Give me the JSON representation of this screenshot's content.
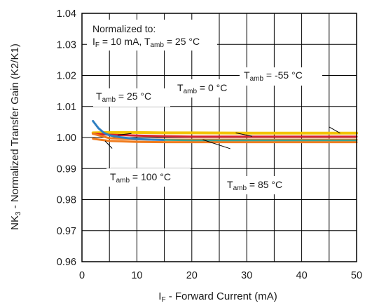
{
  "chart_data": {
    "type": "line",
    "title": "",
    "xlabel": {
      "prefix": "I",
      "sub": "F",
      "suffix": " - Forward Current (mA)"
    },
    "ylabel": {
      "prefix": "NK",
      "sub": "3",
      "suffix": " - Normalized Transfer Gain (K2/K1)"
    },
    "xlim": [
      0,
      50
    ],
    "ylim": [
      0.96,
      1.04
    ],
    "xticks": [
      0,
      10,
      20,
      30,
      40,
      50
    ],
    "yticks": [
      0.96,
      0.97,
      0.98,
      0.99,
      1.0,
      1.01,
      1.02,
      1.03,
      1.04
    ],
    "xtick_labels": [
      "0",
      "10",
      "20",
      "30",
      "40",
      "50"
    ],
    "ytick_labels": [
      "0.96",
      "0.97",
      "0.98",
      "0.99",
      "1.00",
      "1.01",
      "1.02",
      "1.03",
      "1.04"
    ],
    "grid": true,
    "colors": {
      "grid": "#000000",
      "yellow": "#f2c300",
      "red": "#d8232a",
      "orange": "#f07c1e",
      "blue": "#2f7fc1",
      "teal": "#3aa38f"
    },
    "series": [
      {
        "name": "Tamb = -55 °C",
        "color": "#f2c300",
        "width": 4,
        "x": [
          2,
          5,
          10,
          15,
          20,
          30,
          40,
          50
        ],
        "y": [
          1.0015,
          1.0016,
          1.0016,
          1.0015,
          1.0015,
          1.0014,
          1.0014,
          1.0014
        ]
      },
      {
        "name": "Tamb = 0 °C",
        "color": "#d8232a",
        "width": 3,
        "x": [
          2,
          5,
          10,
          15,
          20,
          30,
          40,
          50
        ],
        "y": [
          1.0012,
          1.0009,
          1.0006,
          1.0004,
          1.0003,
          1.0003,
          1.0003,
          1.0003
        ]
      },
      {
        "name": "Tamb = 85 °C",
        "color": "#f07c1e",
        "width": 3,
        "x": [
          2,
          5,
          10,
          15,
          20,
          30,
          40,
          50
        ],
        "y": [
          1.0012,
          0.9998,
          0.9994,
          0.9993,
          0.9993,
          0.9993,
          0.9993,
          0.9993
        ]
      },
      {
        "name": "Tamb = 100 °C",
        "color": "#f07c1e",
        "width": 3,
        "x": [
          2,
          5,
          10,
          15,
          20,
          30,
          40,
          50
        ],
        "y": [
          0.9996,
          0.9989,
          0.9986,
          0.9985,
          0.9985,
          0.9985,
          0.9985,
          0.9985
        ]
      },
      {
        "name": "Tamb = 25 °C",
        "color": "#2f7fc1",
        "width": 3,
        "x": [
          2,
          3,
          4,
          5,
          7,
          10,
          13,
          15
        ],
        "y": [
          1.0053,
          1.003,
          1.0015,
          1.0007,
          1.0001,
          0.9995,
          0.9993,
          0.9992
        ]
      },
      {
        "name": "",
        "color": "#3aa38f",
        "width": 2.5,
        "x": [
          15,
          20,
          30,
          40,
          50
        ],
        "y": [
          0.9992,
          0.9991,
          0.9991,
          0.9991,
          0.9991
        ]
      }
    ],
    "annotations": {
      "normalized_line1": "Normalized to:",
      "normalized_line2": {
        "a": "I",
        "a_sub": "F",
        "b": " = 10 mA, T",
        "b_sub": "amb",
        "c": " = 25 °C"
      },
      "t25": {
        "main": "T",
        "sub": "amb",
        "rest": " = 25 °C"
      },
      "t0": {
        "main": "T",
        "sub": "amb",
        "rest": " = 0 °C"
      },
      "tm55": {
        "main": "T",
        "sub": "amb",
        "rest": " = -55 °C"
      },
      "t100": {
        "main": "T",
        "sub": "amb",
        "rest": " = 100 °C"
      },
      "t85": {
        "main": "T",
        "sub": "amb",
        "rest": " = 85 °C"
      }
    }
  }
}
